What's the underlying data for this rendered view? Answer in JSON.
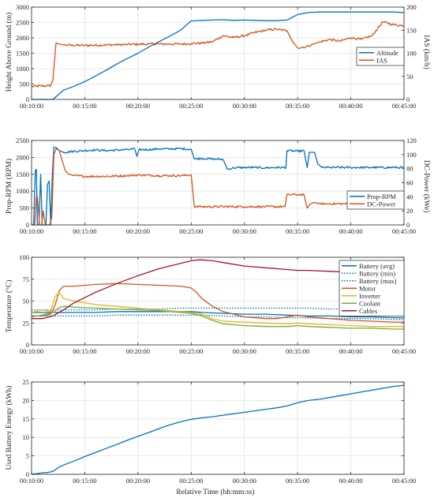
{
  "chart_data": [
    {
      "type": "line",
      "x_range": [
        "00:10:00",
        "00:45:00"
      ],
      "x_ticks": [
        "00:10:00",
        "00:15:00",
        "00:20:00",
        "00:25:00",
        "00:30:00",
        "00:35:00",
        "00:40:00",
        "00:45:00"
      ],
      "ylabel": "Height Above Ground (m)",
      "ylim": [
        0,
        3000
      ],
      "y_ticks": [
        0,
        500,
        1000,
        1500,
        2000,
        2500,
        3000
      ],
      "y2label": "IAS (km/h)",
      "y2lim": [
        0,
        200
      ],
      "y2_ticks": [
        0,
        50,
        100,
        150,
        200
      ],
      "grid": true,
      "legend": "right",
      "series": [
        {
          "name": "Altitude",
          "color": "#0072BD",
          "axis": "left",
          "noisy": false,
          "x": [
            10.0,
            12.0,
            12.5,
            13.0,
            14.0,
            15.0,
            16.0,
            17.0,
            18.0,
            19.0,
            20.0,
            21.0,
            22.0,
            23.0,
            24.0,
            25.0,
            26.0,
            27.0,
            28.0,
            29.0,
            30.0,
            31.0,
            32.0,
            33.0,
            34.0,
            35.0,
            36.0,
            37.0,
            38.0,
            40.0,
            42.0,
            44.0,
            45.0
          ],
          "y": [
            0,
            0,
            150,
            300,
            430,
            580,
            760,
            950,
            1150,
            1330,
            1500,
            1700,
            1880,
            2060,
            2250,
            2550,
            2570,
            2580,
            2590,
            2570,
            2580,
            2570,
            2560,
            2560,
            2580,
            2760,
            2820,
            2840,
            2840,
            2840,
            2840,
            2840,
            2820
          ]
        },
        {
          "name": "IAS",
          "color": "#D95319",
          "axis": "right",
          "noisy": true,
          "x": [
            10.0,
            11.8,
            12.0,
            12.3,
            12.6,
            13.0,
            15.0,
            17.0,
            19.0,
            21.0,
            23.0,
            24.0,
            25.0,
            26.0,
            27.0,
            28.0,
            29.0,
            30.0,
            31.0,
            32.0,
            33.0,
            34.0,
            34.5,
            35.0,
            35.8,
            36.5,
            37.0,
            38.0,
            39.0,
            40.0,
            41.0,
            42.0,
            43.0,
            44.0,
            45.0
          ],
          "y": [
            28,
            30,
            42,
            122,
            120,
            118,
            117,
            118,
            119,
            120,
            120,
            120,
            121,
            122,
            125,
            138,
            134,
            138,
            145,
            150,
            152,
            149,
            126,
            112,
            114,
            120,
            124,
            130,
            126,
            134,
            130,
            138,
            168,
            162,
            160
          ]
        }
      ]
    },
    {
      "type": "line",
      "x_range": [
        "00:10:00",
        "00:45:00"
      ],
      "x_ticks": [
        "00:10:00",
        "00:15:00",
        "00:20:00",
        "00:25:00",
        "00:30:00",
        "00:35:00",
        "00:40:00",
        "00:45:00"
      ],
      "ylabel": "Prop-RPM (RPM)",
      "ylim": [
        0,
        2500
      ],
      "y_ticks": [
        0,
        500,
        1000,
        1500,
        2000,
        2500
      ],
      "y2label": "DC-Power (kWe)",
      "y2lim": [
        0,
        120
      ],
      "y2_ticks": [
        0,
        20,
        40,
        60,
        80,
        100,
        120
      ],
      "grid": true,
      "legend": "right",
      "series": [
        {
          "name": "Prop-RPM",
          "color": "#0072BD",
          "axis": "left",
          "noisy": true,
          "x": [
            10.0,
            10.2,
            10.35,
            10.45,
            10.55,
            10.7,
            10.85,
            11.0,
            11.2,
            11.35,
            11.5,
            11.65,
            11.8,
            11.95,
            12.1,
            12.3,
            12.6,
            13.0,
            14.0,
            15.0,
            16.0,
            17.0,
            19.0,
            19.7,
            19.9,
            20.1,
            21.0,
            22.0,
            23.0,
            24.0,
            25.0,
            25.3,
            26.0,
            27.0,
            28.0,
            28.4,
            29.0,
            30.0,
            31.0,
            32.0,
            33.0,
            33.9,
            34.0,
            35.0,
            35.6,
            35.9,
            36.1,
            36.6,
            36.9,
            37.3,
            38.0,
            40.0,
            42.0,
            44.0,
            45.0
          ],
          "y": [
            0,
            0,
            1600,
            1650,
            0,
            0,
            1500,
            0,
            0,
            0,
            1200,
            1300,
            0,
            1500,
            2300,
            2300,
            2200,
            2150,
            2180,
            2200,
            2220,
            2200,
            2230,
            2250,
            2030,
            2230,
            2230,
            2250,
            2250,
            2260,
            2240,
            1950,
            1970,
            1950,
            1940,
            1650,
            1690,
            1700,
            1700,
            1690,
            1700,
            1700,
            2200,
            2180,
            2200,
            1700,
            2150,
            2150,
            1800,
            1700,
            1700,
            1700,
            1700,
            1700,
            1700
          ]
        },
        {
          "name": "DC-Power",
          "color": "#D95319",
          "axis": "right",
          "noisy": true,
          "x": [
            10.0,
            10.3,
            10.45,
            10.55,
            10.75,
            10.95,
            11.1,
            11.3,
            11.5,
            11.7,
            11.9,
            12.1,
            12.3,
            12.6,
            12.9,
            13.2,
            13.5,
            14.0,
            15.0,
            17.0,
            19.0,
            20.0,
            22.0,
            24.0,
            25.0,
            25.3,
            26.0,
            28.0,
            30.0,
            32.0,
            33.8,
            34.0,
            35.0,
            35.6,
            35.9,
            36.2,
            36.6,
            37.0,
            38.0,
            40.0,
            42.0,
            43.0,
            44.0,
            45.0
          ],
          "y": [
            0,
            0,
            40,
            40,
            0,
            0,
            20,
            0,
            0,
            0,
            10,
            100,
            108,
            106,
            90,
            76,
            72,
            70,
            69,
            69,
            70,
            71,
            70,
            70,
            71,
            26,
            26,
            26,
            26,
            26,
            26,
            43,
            43,
            43,
            24,
            30,
            32,
            30,
            30,
            30,
            30,
            29,
            26,
            26
          ]
        }
      ]
    },
    {
      "type": "line",
      "x_range": [
        "00:10:00",
        "00:45:00"
      ],
      "x_ticks": [
        "00:10:00",
        "00:15:00",
        "00:20:00",
        "00:25:00",
        "00:30:00",
        "00:35:00",
        "00:40:00",
        "00:45:00"
      ],
      "ylabel": "Temperature (°C)",
      "ylim": [
        0,
        100
      ],
      "y_ticks": [
        0,
        25,
        50,
        75,
        100
      ],
      "grid": true,
      "legend": "top-right",
      "series": [
        {
          "name": "Battery (avg)",
          "color": "#0072BD",
          "axis": "left",
          "style": "solid",
          "x": [
            10.0,
            12.0,
            14.0,
            16.0,
            18.0,
            20.0,
            22.0,
            24.0,
            25.0,
            26.0,
            28.0,
            30.0,
            32.0,
            34.0,
            36.0,
            38.0,
            40.0,
            42.0,
            44.0,
            45.0
          ],
          "y": [
            37,
            37,
            37,
            37,
            38,
            38,
            38,
            38,
            38,
            37,
            36,
            35,
            35,
            34,
            33,
            33,
            32,
            32,
            31,
            31
          ]
        },
        {
          "name": "Battery (min)",
          "color": "#0072BD",
          "axis": "left",
          "style": "dotted",
          "x": [
            10.0,
            12.0,
            14.0,
            16.0,
            18.0,
            20.0,
            22.0,
            24.0,
            25.0,
            26.0,
            28.0,
            30.0,
            32.0,
            34.0,
            36.0,
            38.0,
            40.0,
            42.0,
            44.0,
            45.0
          ],
          "y": [
            33,
            33,
            33,
            33,
            34,
            34,
            34,
            34,
            34,
            34,
            33,
            32,
            32,
            31,
            31,
            30,
            30,
            30,
            29,
            29
          ]
        },
        {
          "name": "Battery (max)",
          "color": "#0072BD",
          "axis": "left",
          "style": "dotted",
          "x": [
            10.0,
            12.0,
            14.0,
            16.0,
            18.0,
            20.0,
            22.0,
            24.0,
            25.0,
            26.0,
            28.0,
            30.0,
            32.0,
            34.0,
            36.0,
            38.0,
            40.0,
            42.0,
            44.0,
            45.0
          ],
          "y": [
            40,
            40,
            40,
            40,
            41,
            41,
            41,
            42,
            42,
            42,
            42,
            42,
            42,
            42,
            42,
            41,
            41,
            41,
            40,
            40
          ]
        },
        {
          "name": "Motor",
          "color": "#D95319",
          "axis": "left",
          "style": "solid",
          "x": [
            10.0,
            11.0,
            11.8,
            12.2,
            12.6,
            13.0,
            14.0,
            15.0,
            16.0,
            18.0,
            20.0,
            22.0,
            24.0,
            25.0,
            25.5,
            26.0,
            27.0,
            28.0,
            30.0,
            32.0,
            33.0,
            34.0,
            35.0,
            36.0,
            38.0,
            40.0,
            42.0,
            44.0,
            45.0
          ],
          "y": [
            33,
            33,
            35,
            45,
            62,
            67,
            67,
            68,
            69,
            70,
            69,
            68,
            67,
            65,
            60,
            53,
            44,
            38,
            32,
            30,
            30,
            32,
            34,
            32,
            30,
            28,
            27,
            26,
            26
          ]
        },
        {
          "name": "Inverter",
          "color": "#EDB120",
          "axis": "left",
          "style": "solid",
          "x": [
            10.0,
            11.0,
            11.8,
            12.2,
            12.6,
            13.0,
            14.0,
            16.0,
            18.0,
            20.0,
            22.0,
            24.0,
            25.0,
            26.0,
            27.0,
            28.0,
            30.0,
            32.0,
            34.0,
            35.0,
            36.0,
            38.0,
            40.0,
            42.0,
            44.0,
            45.0
          ],
          "y": [
            37,
            40,
            38,
            55,
            60,
            53,
            50,
            46,
            44,
            42,
            40,
            38,
            37,
            35,
            30,
            27,
            26,
            25,
            24,
            25,
            24,
            23,
            22,
            21,
            21,
            21
          ]
        },
        {
          "name": "Coolant",
          "color": "#77AC30",
          "axis": "left",
          "style": "solid",
          "x": [
            10.0,
            11.0,
            12.0,
            12.5,
            13.0,
            14.0,
            16.0,
            18.0,
            20.0,
            22.0,
            24.0,
            25.0,
            26.0,
            27.0,
            28.0,
            30.0,
            32.0,
            34.0,
            35.0,
            36.0,
            38.0,
            40.0,
            42.0,
            44.0,
            45.0
          ],
          "y": [
            32,
            34,
            37,
            42,
            44,
            43,
            42,
            41,
            40,
            39,
            37,
            36,
            33,
            28,
            24,
            22,
            21,
            21,
            22,
            21,
            20,
            19,
            19,
            18,
            18
          ]
        },
        {
          "name": "Cables",
          "color": "#A2142F",
          "axis": "left",
          "style": "solid",
          "x": [
            10.0,
            11.0,
            12.0,
            13.0,
            14.0,
            16.0,
            18.0,
            20.0,
            22.0,
            24.0,
            25.0,
            25.7,
            26.0,
            27.0,
            28.0,
            30.0,
            32.0,
            34.0,
            35.0,
            36.0,
            38.0,
            40.0,
            42.0,
            44.0,
            45.0
          ],
          "y": [
            30,
            30,
            33,
            40,
            48,
            60,
            70,
            79,
            87,
            93,
            96,
            97,
            97,
            96,
            94,
            90,
            88,
            86,
            85,
            85,
            84,
            83,
            82,
            81,
            80
          ]
        }
      ]
    },
    {
      "type": "line",
      "x_range": [
        "00:10:00",
        "00:45:00"
      ],
      "x_ticks": [
        "00:10:00",
        "00:15:00",
        "00:20:00",
        "00:25:00",
        "00:30:00",
        "00:35:00",
        "00:40:00",
        "00:45:00"
      ],
      "xlabel": "Relative Time (hh:mm:ss)",
      "ylabel": "Used Battery Energy (kWh)",
      "ylim": [
        0,
        25
      ],
      "y_ticks": [
        0,
        5,
        10,
        15,
        20,
        25
      ],
      "grid": true,
      "series": [
        {
          "name": "",
          "color": "#0072BD",
          "axis": "left",
          "noisy": false,
          "x": [
            10.0,
            10.5,
            11.0,
            11.5,
            12.0,
            12.5,
            13.0,
            14.0,
            15.0,
            16.0,
            17.0,
            18.0,
            19.0,
            20.0,
            21.0,
            22.0,
            23.0,
            24.0,
            25.0,
            26.0,
            27.0,
            28.0,
            29.0,
            30.0,
            31.0,
            32.0,
            33.0,
            34.0,
            35.0,
            36.0,
            37.0,
            38.0,
            39.0,
            40.0,
            41.0,
            42.0,
            43.0,
            44.0,
            45.0
          ],
          "y": [
            0,
            0.2,
            0.4,
            0.5,
            0.8,
            1.8,
            2.5,
            3.6,
            4.8,
            5.9,
            7.0,
            8.1,
            9.2,
            10.3,
            11.3,
            12.4,
            13.4,
            14.2,
            14.9,
            15.3,
            15.6,
            16.0,
            16.4,
            16.8,
            17.2,
            17.6,
            18.0,
            18.5,
            19.4,
            20.0,
            20.3,
            20.8,
            21.3,
            21.8,
            22.3,
            22.8,
            23.3,
            23.8,
            24.1
          ]
        }
      ]
    }
  ]
}
